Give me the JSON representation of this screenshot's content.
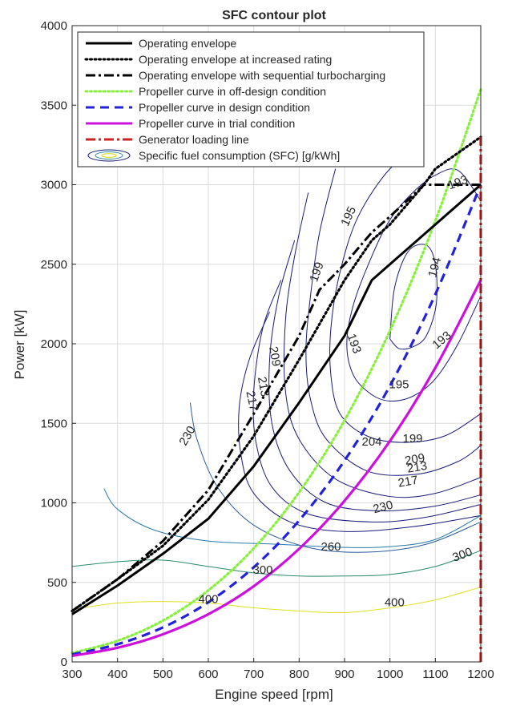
{
  "chart_data": {
    "type": "line",
    "title": "SFC contour plot",
    "xlabel": "Engine speed [rpm]",
    "ylabel": "Power [kW]",
    "xlim": [
      300,
      1200
    ],
    "ylim": [
      0,
      4000
    ],
    "xticks": [
      300,
      400,
      500,
      600,
      700,
      800,
      900,
      1000,
      1100,
      1200
    ],
    "yticks": [
      0,
      500,
      1000,
      1500,
      2000,
      2500,
      3000,
      3500,
      4000
    ],
    "grid": true,
    "legend_position": "top-left",
    "series": [
      {
        "name": "Operating envelope",
        "color": "#000000",
        "style": "solid",
        "x": [
          300,
          400,
          500,
          600,
          700,
          800,
          900,
          960,
          1000,
          1100,
          1200
        ],
        "y": [
          300,
          480,
          680,
          900,
          1230,
          1630,
          2050,
          2400,
          2500,
          2750,
          3000
        ]
      },
      {
        "name": "Operating envelope at increased rating",
        "color": "#000000",
        "style": "dotted",
        "x": [
          300,
          400,
          500,
          600,
          700,
          800,
          900,
          960,
          1000,
          1075,
          1100,
          1200
        ],
        "y": [
          320,
          520,
          730,
          1020,
          1420,
          1900,
          2400,
          2650,
          2750,
          3000,
          3100,
          3300
        ]
      },
      {
        "name": "Operating envelope with sequential turbocharging",
        "color": "#000000",
        "style": "dashdot",
        "x": [
          300,
          400,
          500,
          600,
          700,
          800,
          845,
          900,
          960,
          1000,
          1075,
          1200
        ],
        "y": [
          320,
          520,
          760,
          1080,
          1560,
          2050,
          2340,
          2500,
          2700,
          2800,
          3000,
          3000
        ]
      },
      {
        "name": "Propeller curve in off-design condition",
        "color": "#88f03c",
        "style": "dotted",
        "x": [
          300,
          400,
          500,
          600,
          700,
          800,
          900,
          1000,
          1100,
          1200
        ],
        "y": [
          56,
          133,
          260,
          450,
          714,
          1067,
          1519,
          2083,
          2773,
          3600
        ]
      },
      {
        "name": "Propeller curve in design condition",
        "color": "#2222dd",
        "style": "dashed",
        "x": [
          300,
          400,
          500,
          600,
          700,
          800,
          900,
          1000,
          1100,
          1200
        ],
        "y": [
          47,
          111,
          217,
          375,
          595,
          889,
          1266,
          1736,
          2311,
          3000
        ]
      },
      {
        "name": "Propeller curve in trial condition",
        "color": "#cc11dd",
        "style": "solid",
        "x": [
          300,
          400,
          500,
          600,
          700,
          800,
          900,
          1000,
          1100,
          1200
        ],
        "y": [
          38,
          89,
          174,
          300,
          476,
          711,
          1013,
          1389,
          1849,
          2400
        ]
      },
      {
        "name": "Generator loading line",
        "color": "#cc2222",
        "style": "dashdot",
        "x": [
          1200,
          1200
        ],
        "y": [
          0,
          3300
        ]
      }
    ],
    "contour_legend": "Specific fuel consumption (SFC) [g/kWh]",
    "contours": [
      {
        "level": "194",
        "color": "#1a1a7a",
        "x": [
          1000,
          1010,
          1040,
          1080,
          1100,
          1102,
          1080,
          1050,
          1020,
          1000
        ],
        "y": [
          2030,
          2350,
          2580,
          2620,
          2500,
          2250,
          2050,
          1980,
          1970,
          2030
        ]
      },
      {
        "level": "193",
        "color": "#1a1a7a",
        "x": [
          1200,
          1150,
          1100,
          1050,
          1000,
          960,
          920,
          905,
          920,
          960,
          1000,
          1050,
          1100,
          1150,
          1200
        ],
        "y": [
          2900,
          3090,
          3060,
          2950,
          2780,
          2550,
          2250,
          2000,
          1800,
          1680,
          1640,
          1670,
          1780,
          2000,
          2300
        ]
      },
      {
        "level": "195",
        "color": "#1a1a7a",
        "x": [
          1060,
          1000,
          930,
          890,
          870,
          870,
          890,
          950,
          1030,
          1120,
          1200
        ],
        "y": [
          3200,
          3100,
          2800,
          2450,
          2100,
          1800,
          1560,
          1420,
          1380,
          1420,
          1560
        ]
      },
      {
        "level": "199",
        "color": "#1a1a7a",
        "x": [
          880,
          845,
          825,
          815,
          825,
          860,
          950,
          1060,
          1150,
          1200
        ],
        "y": [
          3100,
          2700,
          2300,
          1950,
          1650,
          1400,
          1200,
          1180,
          1260,
          1360
        ]
      },
      {
        "level": "204",
        "color": "#1a1a7a",
        "x": [
          820,
          790,
          770,
          770,
          800,
          880,
          1000,
          1100,
          1200
        ],
        "y": [
          2950,
          2550,
          2150,
          1700,
          1400,
          1150,
          1040,
          1060,
          1160
        ]
      },
      {
        "level": "209",
        "color": "#1a1a7a",
        "x": [
          790,
          755,
          735,
          740,
          780,
          860,
          980,
          1100,
          1200
        ],
        "y": [
          2650,
          2300,
          1900,
          1500,
          1200,
          1000,
          950,
          980,
          1050
        ]
      },
      {
        "level": "213",
        "color": "#1a1a7a",
        "x": [
          760,
          720,
          700,
          705,
          740,
          820,
          960,
          1080,
          1200
        ],
        "y": [
          2400,
          2100,
          1700,
          1380,
          1100,
          930,
          880,
          910,
          990
        ]
      },
      {
        "level": "217",
        "color": "#1a1a7a",
        "x": [
          735,
          690,
          668,
          672,
          700,
          780,
          900,
          1050,
          1200
        ],
        "y": [
          2200,
          1900,
          1600,
          1300,
          1060,
          880,
          820,
          850,
          920
        ]
      },
      {
        "level": "230",
        "color": "#2a5a9a",
        "x": [
          560,
          575,
          620,
          700,
          820,
          950,
          1080,
          1200
        ],
        "y": [
          1630,
          1400,
          1100,
          860,
          720,
          690,
          740,
          880
        ]
      },
      {
        "level": "260",
        "color": "#2a7aaa",
        "x": [
          370,
          400,
          480,
          600,
          750,
          900,
          1000,
          1100,
          1200
        ],
        "y": [
          1090,
          960,
          830,
          760,
          740,
          720,
          725,
          770,
          920
        ]
      },
      {
        "level": "300",
        "color": "#2a8a6a",
        "x": [
          300,
          400,
          500,
          600,
          700,
          800,
          900,
          1000,
          1100,
          1200
        ],
        "y": [
          600,
          630,
          640,
          600,
          560,
          540,
          540,
          550,
          600,
          700
        ]
      },
      {
        "level": "400",
        "color": "#e0e020",
        "x": [
          300,
          400,
          500,
          600,
          700,
          800,
          900,
          1000,
          1100,
          1200
        ],
        "y": [
          330,
          370,
          380,
          370,
          340,
          320,
          310,
          340,
          390,
          470
        ]
      }
    ],
    "contour_labels": [
      {
        "text": "193",
        "x": 1150,
        "y": 3010,
        "angle": -20
      },
      {
        "text": "195",
        "x": 910,
        "y": 2800,
        "angle": -65
      },
      {
        "text": "199",
        "x": 840,
        "y": 2450,
        "angle": -70
      },
      {
        "text": "194",
        "x": 1100,
        "y": 2480,
        "angle": -75
      },
      {
        "text": "193",
        "x": 920,
        "y": 2000,
        "angle": 70
      },
      {
        "text": "193",
        "x": 1115,
        "y": 2020,
        "angle": -40
      },
      {
        "text": "209",
        "x": 745,
        "y": 1920,
        "angle": 80
      },
      {
        "text": "213",
        "x": 720,
        "y": 1730,
        "angle": 80
      },
      {
        "text": "217",
        "x": 695,
        "y": 1640,
        "angle": 78
      },
      {
        "text": "195",
        "x": 1020,
        "y": 1740,
        "angle": 0
      },
      {
        "text": "199",
        "x": 1050,
        "y": 1400,
        "angle": 0
      },
      {
        "text": "204",
        "x": 960,
        "y": 1380,
        "angle": 0
      },
      {
        "text": "230",
        "x": 555,
        "y": 1420,
        "angle": -60
      },
      {
        "text": "209",
        "x": 1055,
        "y": 1270,
        "angle": -10
      },
      {
        "text": "213",
        "x": 1060,
        "y": 1220,
        "angle": -10
      },
      {
        "text": "217",
        "x": 1040,
        "y": 1130,
        "angle": -10
      },
      {
        "text": "230",
        "x": 985,
        "y": 970,
        "angle": -15
      },
      {
        "text": "260",
        "x": 870,
        "y": 720,
        "angle": 0
      },
      {
        "text": "300",
        "x": 1160,
        "y": 670,
        "angle": -20
      },
      {
        "text": "300",
        "x": 720,
        "y": 575,
        "angle": 0
      },
      {
        "text": "400",
        "x": 1010,
        "y": 370,
        "angle": 0
      },
      {
        "text": "400",
        "x": 600,
        "y": 390,
        "angle": 0
      }
    ]
  }
}
